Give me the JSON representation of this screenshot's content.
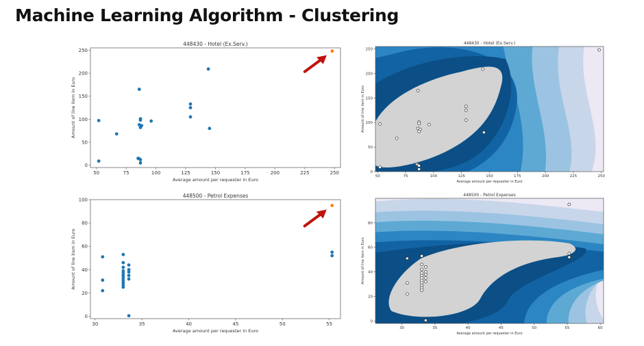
{
  "page": {
    "title": "Machine Learning Algorithm - Clustering"
  },
  "chart_data": [
    {
      "type": "scatter",
      "title": "448430 - Hotel (Ex.Serv.)",
      "xlabel": "Average amount per requester in Euro",
      "ylabel": "Amount of line item in Euro",
      "xlim": [
        45,
        255
      ],
      "ylim": [
        -5,
        255
      ],
      "xticks": [
        50,
        75,
        100,
        125,
        150,
        175,
        200,
        225,
        250
      ],
      "yticks": [
        0,
        50,
        100,
        150,
        200,
        250
      ],
      "grid": false,
      "series": [
        {
          "color": "#1f77b4",
          "points": [
            [
              52,
              97
            ],
            [
              52,
              9
            ],
            [
              67,
              68
            ],
            [
              86,
              165
            ],
            [
              87,
              101
            ],
            [
              87,
              98
            ],
            [
              86,
              88
            ],
            [
              88,
              86
            ],
            [
              87,
              82
            ],
            [
              85,
              15
            ],
            [
              86,
              14
            ],
            [
              87,
              12
            ],
            [
              87,
              5
            ],
            [
              96,
              96
            ],
            [
              129,
              133
            ],
            [
              129,
              125
            ],
            [
              129,
              105
            ],
            [
              144,
              209
            ],
            [
              145,
              80
            ]
          ]
        },
        {
          "color": "#ff7f0e",
          "points": [
            [
              248,
              248
            ]
          ]
        }
      ],
      "annotations": [
        "red-arrow-to-outlier"
      ]
    },
    {
      "type": "contour",
      "title": "448430 - Hotel (Ex.Serv.)",
      "xlabel": "Average amount per requester in Euro",
      "ylabel": "Amount of line item in Euro",
      "xlim": [
        48,
        252
      ],
      "ylim": [
        0,
        255
      ],
      "xticks": [
        50,
        75,
        100,
        125,
        150,
        175,
        200,
        225,
        250
      ],
      "yticks": [
        0,
        50,
        100,
        150,
        200,
        250
      ],
      "colors": {
        "inlier": "#d3d3d3",
        "levels": [
          "#0b4f86",
          "#1263a3",
          "#2b86c3",
          "#5ea9d4",
          "#9cc4e2",
          "#c8d6ea",
          "#ece8f4"
        ]
      },
      "points": [
        [
          52,
          97
        ],
        [
          52,
          9
        ],
        [
          67,
          68
        ],
        [
          86,
          165
        ],
        [
          87,
          101
        ],
        [
          87,
          98
        ],
        [
          86,
          88
        ],
        [
          88,
          86
        ],
        [
          87,
          82
        ],
        [
          85,
          15
        ],
        [
          86,
          14
        ],
        [
          87,
          12
        ],
        [
          87,
          5
        ],
        [
          96,
          96
        ],
        [
          129,
          133
        ],
        [
          129,
          125
        ],
        [
          129,
          105
        ],
        [
          144,
          209
        ],
        [
          145,
          80
        ],
        [
          248,
          248
        ]
      ]
    },
    {
      "type": "scatter",
      "title": "448500 - Petrol Expenses",
      "xlabel": "Average amount per requester in Euro",
      "ylabel": "Amount of line item in Euro",
      "xlim": [
        29.5,
        56.2
      ],
      "ylim": [
        -2,
        100
      ],
      "xticks": [
        30,
        35,
        40,
        45,
        50,
        55
      ],
      "yticks": [
        0,
        20,
        40,
        60,
        80,
        100
      ],
      "grid": false,
      "series": [
        {
          "color": "#1f77b4",
          "points": [
            [
              30.8,
              51
            ],
            [
              30.8,
              31
            ],
            [
              30.8,
              22
            ],
            [
              33,
              53
            ],
            [
              33,
              46
            ],
            [
              33,
              42
            ],
            [
              33,
              39
            ],
            [
              33,
              37
            ],
            [
              33,
              35
            ],
            [
              33,
              33
            ],
            [
              33,
              31
            ],
            [
              33,
              29
            ],
            [
              33,
              27
            ],
            [
              33,
              25
            ],
            [
              33.6,
              44
            ],
            [
              33.6,
              40
            ],
            [
              33.6,
              38
            ],
            [
              33.6,
              35
            ],
            [
              33.6,
              32
            ],
            [
              33.6,
              0.5
            ],
            [
              55.3,
              55
            ],
            [
              55.3,
              52
            ]
          ]
        },
        {
          "color": "#ff7f0e",
          "points": [
            [
              55.3,
              95
            ]
          ]
        }
      ],
      "annotations": [
        "red-arrow-to-outlier"
      ]
    },
    {
      "type": "contour",
      "title": "448500 - Petrol Expenses",
      "xlabel": "Average amount per requester in Euro",
      "ylabel": "Amount of line item in Euro",
      "xlim": [
        26,
        60.5
      ],
      "ylim": [
        -2,
        100
      ],
      "xticks": [
        30,
        35,
        40,
        45,
        50,
        55,
        60
      ],
      "yticks": [
        0,
        20,
        40,
        60,
        80
      ],
      "colors": {
        "inlier": "#d3d3d3",
        "levels": [
          "#0b4f86",
          "#1263a3",
          "#2b86c3",
          "#5ea9d4",
          "#9cc4e2",
          "#c8d6ea",
          "#ece8f4"
        ]
      },
      "points": [
        [
          30.8,
          51
        ],
        [
          30.8,
          31
        ],
        [
          30.8,
          22
        ],
        [
          33,
          53
        ],
        [
          33,
          46
        ],
        [
          33,
          42
        ],
        [
          33,
          39
        ],
        [
          33,
          37
        ],
        [
          33,
          35
        ],
        [
          33,
          33
        ],
        [
          33,
          31
        ],
        [
          33,
          29
        ],
        [
          33,
          27
        ],
        [
          33,
          25
        ],
        [
          33.6,
          44
        ],
        [
          33.6,
          40
        ],
        [
          33.6,
          38
        ],
        [
          33.6,
          35
        ],
        [
          33.6,
          32
        ],
        [
          33.6,
          0.5
        ],
        [
          55.3,
          55
        ],
        [
          55.3,
          52
        ],
        [
          55.3,
          95
        ]
      ]
    }
  ]
}
